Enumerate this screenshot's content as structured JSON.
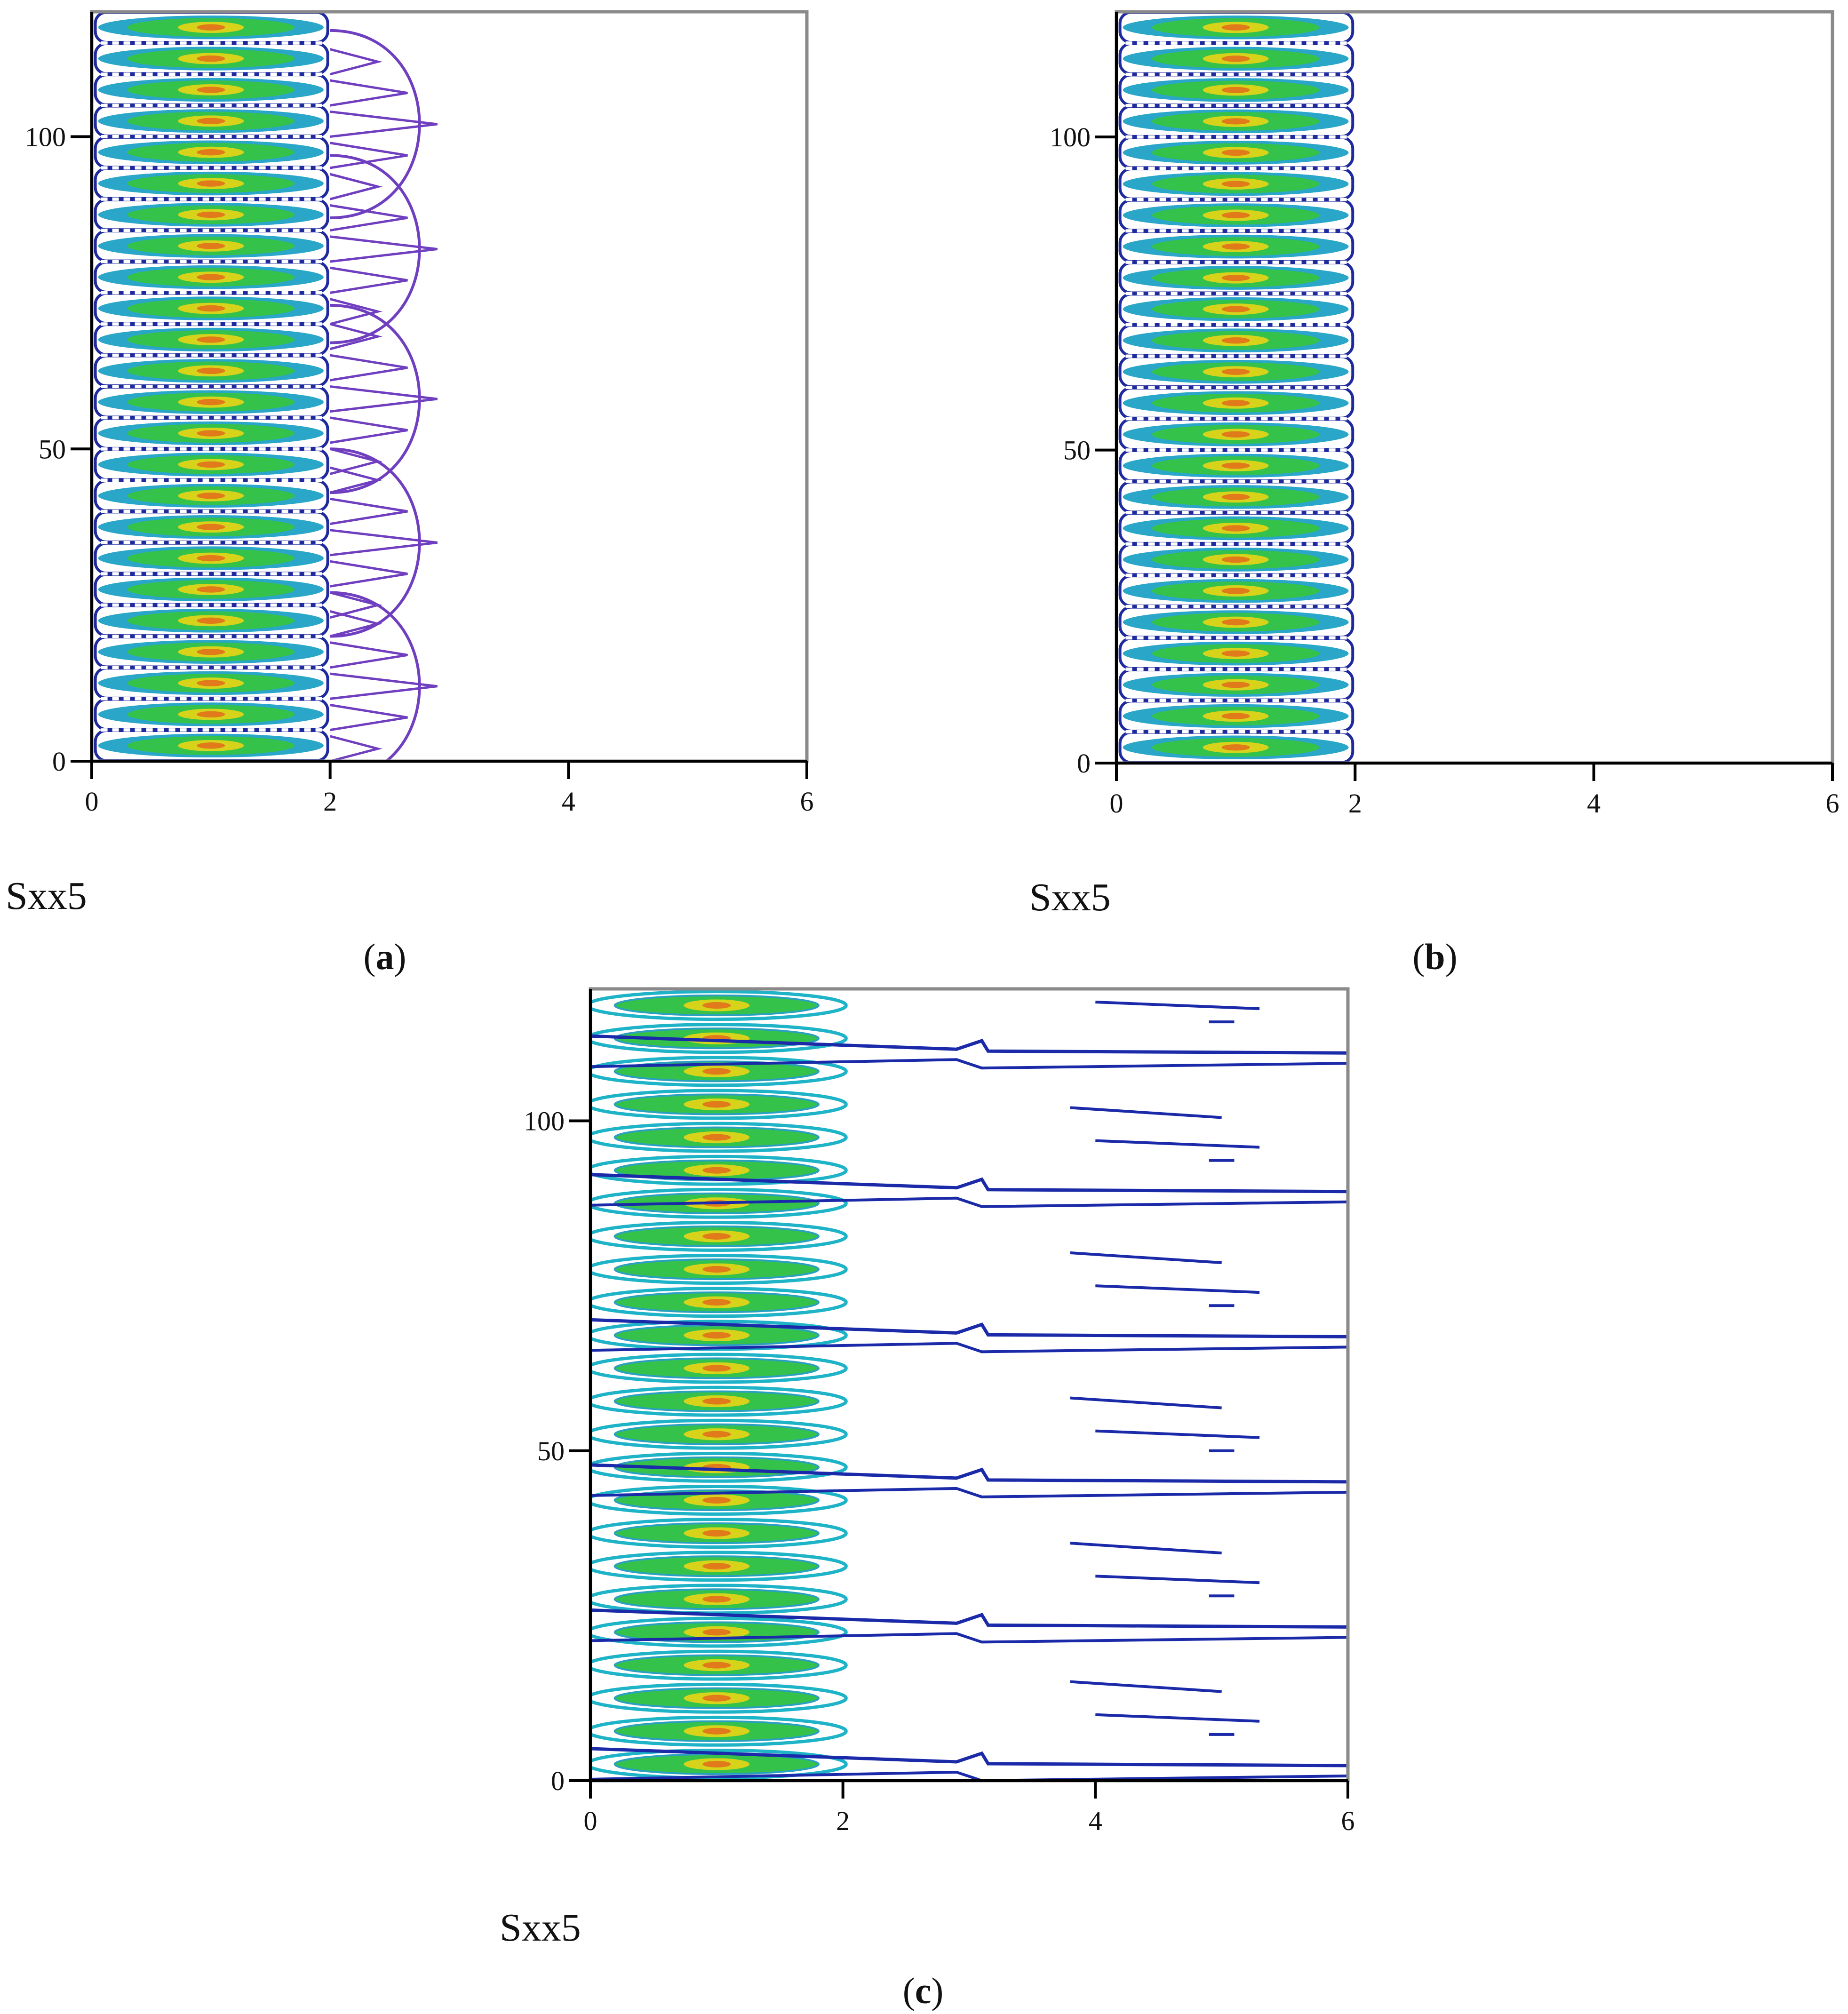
{
  "chart_data": [
    {
      "id": "a",
      "type": "contour",
      "caption_letter": "a",
      "xlabel": "Sxx5",
      "xlim": [
        0,
        6
      ],
      "ylim": [
        0,
        120
      ],
      "xticks": [
        0,
        2,
        4,
        6
      ],
      "yticks": [
        0,
        50,
        100
      ],
      "band_count": 24,
      "contour_x_extent": 1.98,
      "outer_lobe_x_extent": 2.9,
      "outer_lobe_centers_y": [
        12,
        35,
        58,
        82,
        102
      ]
    },
    {
      "id": "b",
      "type": "contour",
      "caption_letter": "b",
      "xlabel": "Sxx5",
      "xlim": [
        0,
        6
      ],
      "ylim": [
        0,
        120
      ],
      "xticks": [
        0,
        2,
        4,
        6
      ],
      "yticks": [
        0,
        50,
        100
      ],
      "band_count": 24,
      "contour_x_extent": 1.98
    },
    {
      "id": "c",
      "type": "contour",
      "caption_letter": "c",
      "xlabel": "Sxx5",
      "xlim": [
        0,
        6
      ],
      "ylim": [
        0,
        120
      ],
      "xticks": [
        0,
        2,
        4,
        6
      ],
      "yticks": [
        0,
        50,
        100
      ],
      "band_count": 24,
      "contour_x_extent": 2.2,
      "stripe_y": [
        2,
        23,
        45,
        67,
        89,
        110
      ]
    }
  ],
  "colors": {
    "frame": "#8a8a8a",
    "axis": "#000000",
    "outer_contour": "#1f2a9e",
    "lobe_contour": "#6f3fc0",
    "cyan_contour": "#1fb3c8",
    "green_fill": "#35c24a",
    "yellow_fill": "#d7d21a",
    "orange_center": "#e07a1a",
    "stripe_line": "#1a2aa8"
  }
}
